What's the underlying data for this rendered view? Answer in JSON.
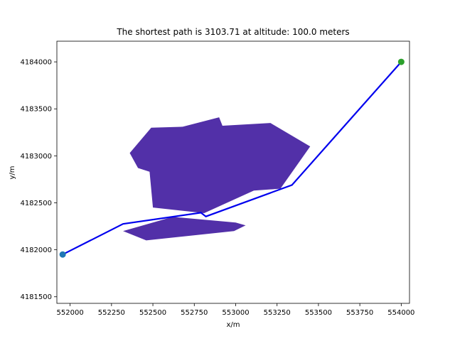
{
  "chart_data": {
    "type": "line",
    "title": "The shortest path is 3103.71 at altitude: 100.0 meters",
    "xlabel": "x/m",
    "ylabel": "y/m",
    "xlim": [
      551920,
      554050
    ],
    "ylim": [
      4181430,
      4184220
    ],
    "grid": false,
    "x_ticks": [
      552000,
      552250,
      552500,
      552750,
      553000,
      553250,
      553500,
      553750,
      554000
    ],
    "y_ticks": [
      4181500,
      4182000,
      4182500,
      4183000,
      4183500,
      4184000
    ],
    "colors": {
      "obstacle": "#5230a8",
      "path": "#0000ee",
      "start": "#1f77b4",
      "goal": "#2ca02c"
    },
    "series": [
      {
        "type": "line",
        "x": [
          551955,
          552320,
          552790,
          552820,
          553340,
          554000
        ],
        "y": [
          4181950,
          4182275,
          4182395,
          4182355,
          4182690,
          4184000
        ]
      },
      {
        "type": "scatter",
        "x": [
          551955
        ],
        "y": [
          4181950
        ]
      },
      {
        "type": "scatter",
        "x": [
          554000
        ],
        "y": [
          4184000
        ]
      }
    ],
    "obstacles": [
      {
        "points": [
          [
            552490,
            4183300
          ],
          [
            552680,
            4183310
          ],
          [
            552900,
            4183410
          ],
          [
            552920,
            4183320
          ],
          [
            553210,
            4183350
          ],
          [
            553450,
            4183100
          ],
          [
            553270,
            4182650
          ],
          [
            553110,
            4182630
          ],
          [
            552810,
            4182390
          ],
          [
            552500,
            4182450
          ],
          [
            552480,
            4182830
          ],
          [
            552410,
            4182870
          ],
          [
            552360,
            4183030
          ]
        ]
      },
      {
        "points": [
          [
            552320,
            4182200
          ],
          [
            552620,
            4182350
          ],
          [
            553000,
            4182290
          ],
          [
            553060,
            4182260
          ],
          [
            552990,
            4182200
          ],
          [
            552460,
            4182100
          ]
        ]
      }
    ]
  }
}
